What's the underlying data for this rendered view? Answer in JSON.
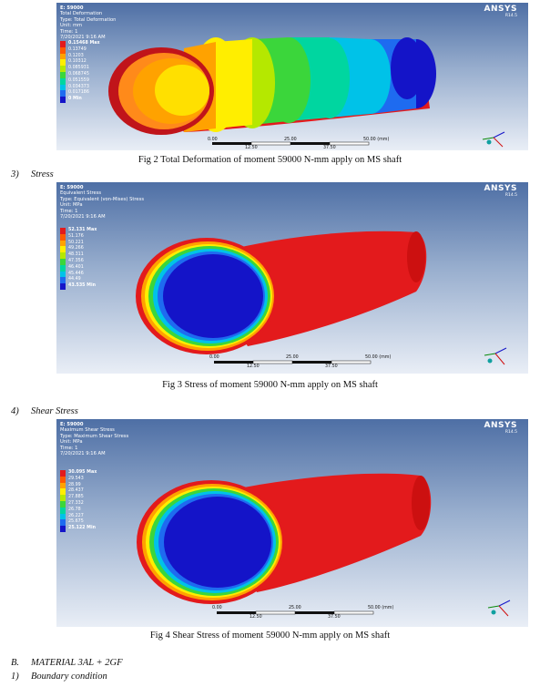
{
  "brand": {
    "name": "ANSYS",
    "version": "R14.5"
  },
  "fig2": {
    "header": [
      "E: 59000",
      "Total Deformation",
      "Type: Total Deformation",
      "Unit: mm",
      "Time: 1",
      "7/20/2021 9:16 AM"
    ],
    "legend": [
      {
        "label": "0.15468 Max",
        "color": "#e31a1c"
      },
      {
        "label": "0.13749",
        "color": "#ff5a00"
      },
      {
        "label": "0.1203",
        "color": "#ffa200"
      },
      {
        "label": "0.10312",
        "color": "#ffee00"
      },
      {
        "label": "0.085931",
        "color": "#b5e800"
      },
      {
        "label": "0.068745",
        "color": "#3bd63b"
      },
      {
        "label": "0.051559",
        "color": "#00d6a0"
      },
      {
        "label": "0.034373",
        "color": "#00c2e8"
      },
      {
        "label": "0.017186",
        "color": "#1e6bf0"
      },
      {
        "label": "0 Min",
        "color": "#1414c8"
      }
    ],
    "scale": {
      "top": [
        "0.00",
        "25.00",
        "50.00 (mm)"
      ],
      "bottom": [
        "12.50",
        "37.50"
      ]
    },
    "caption": "Fig 2 Total Deformation of moment 59000 N-mm apply on MS shaft"
  },
  "section3": {
    "num": "3)",
    "title": "Stress"
  },
  "fig3": {
    "header": [
      "E: 59000",
      "Equivalent Stress",
      "Type: Equivalent (von-Mises) Stress",
      "Unit: MPa",
      "Time: 1",
      "7/20/2021 9:16 AM"
    ],
    "legend": [
      {
        "label": "52.131 Max",
        "color": "#e31a1c"
      },
      {
        "label": "51.176",
        "color": "#ff5a00"
      },
      {
        "label": "50.221",
        "color": "#ffa200"
      },
      {
        "label": "49.266",
        "color": "#ffee00"
      },
      {
        "label": "48.311",
        "color": "#b5e800"
      },
      {
        "label": "47.356",
        "color": "#3bd63b"
      },
      {
        "label": "46.401",
        "color": "#00d6a0"
      },
      {
        "label": "45.446",
        "color": "#00c2e8"
      },
      {
        "label": "44.49",
        "color": "#1e6bf0"
      },
      {
        "label": "43.535 Min",
        "color": "#1414c8"
      }
    ],
    "scale": {
      "top": [
        "0.00",
        "25.00",
        "50.00 (mm)"
      ],
      "bottom": [
        "12.50",
        "37.50"
      ]
    },
    "caption": "Fig 3 Stress of moment 59000 N-mm apply on MS shaft"
  },
  "section4": {
    "num": "4)",
    "title": "Shear Stress"
  },
  "fig4": {
    "header": [
      "E: 59000",
      "Maximum Shear Stress",
      "Type: Maximum Shear Stress",
      "Unit: MPa",
      "Time: 1",
      "7/20/2021 9:16 AM"
    ],
    "legend": [
      {
        "label": "30.095 Max",
        "color": "#e31a1c"
      },
      {
        "label": "29.543",
        "color": "#ff5a00"
      },
      {
        "label": "28.99",
        "color": "#ffa200"
      },
      {
        "label": "28.437",
        "color": "#ffee00"
      },
      {
        "label": "27.885",
        "color": "#b5e800"
      },
      {
        "label": "27.332",
        "color": "#3bd63b"
      },
      {
        "label": "26.78",
        "color": "#00d6a0"
      },
      {
        "label": "26.227",
        "color": "#00c2e8"
      },
      {
        "label": "25.675",
        "color": "#1e6bf0"
      },
      {
        "label": "25.122 Min",
        "color": "#1414c8"
      }
    ],
    "scale": {
      "top": [
        "0.00",
        "25.00",
        "50.00 (mm)"
      ],
      "bottom": [
        "12.50",
        "37.50"
      ]
    },
    "caption": "Fig 4 Shear Stress of moment 59000 N-mm apply on MS shaft"
  },
  "sectionB": {
    "num": "B.",
    "title": "MATERIAL 3AL + 2GF"
  },
  "section1": {
    "num": "1)",
    "title": "Boundary condition"
  }
}
